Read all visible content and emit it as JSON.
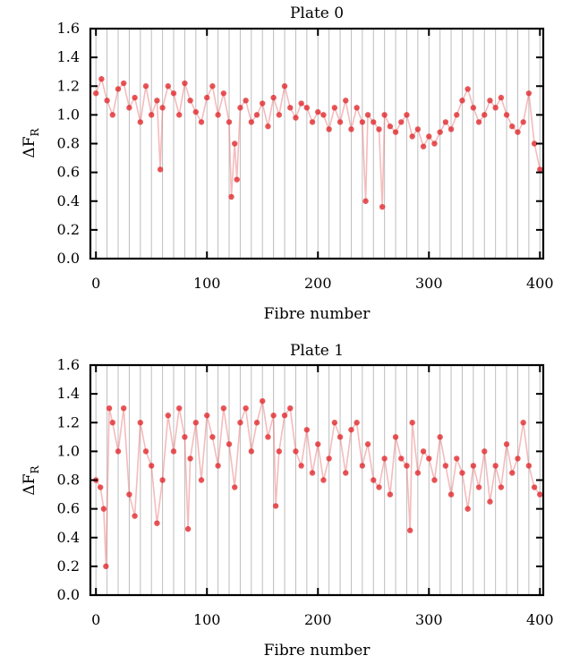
{
  "chart_data": [
    {
      "type": "scatter",
      "title": "Plate 0",
      "xlabel": "Fibre number",
      "ylabel": "ΔF",
      "ylabel_sub": "R",
      "xlim": [
        -5,
        403
      ],
      "ylim": [
        0.0,
        1.6
      ],
      "xticks": [
        "0",
        "100",
        "200",
        "300",
        "400"
      ],
      "yticks": [
        "0.0",
        "0.2",
        "0.4",
        "0.6",
        "0.8",
        "1.0",
        "1.2",
        "1.4",
        "1.6"
      ],
      "grid_x_every": 10,
      "colors": {
        "points": "#e0262a",
        "line": "#e8686b"
      },
      "series": [
        {
          "x": [
            0,
            5,
            10,
            15,
            20,
            25,
            30,
            35,
            40,
            45,
            50,
            55,
            58,
            60,
            65,
            70,
            75,
            80,
            85,
            90,
            95,
            100,
            105,
            110,
            115,
            120,
            122,
            125,
            127,
            130,
            135,
            140,
            145,
            150,
            155,
            160,
            165,
            170,
            175,
            180,
            185,
            190,
            195,
            200,
            205,
            210,
            215,
            220,
            225,
            230,
            235,
            240,
            243,
            245,
            250,
            255,
            258,
            260,
            265,
            270,
            275,
            280,
            285,
            290,
            295,
            300,
            305,
            310,
            315,
            320,
            325,
            330,
            335,
            340,
            345,
            350,
            355,
            360,
            365,
            370,
            375,
            380,
            385,
            390,
            395,
            400
          ],
          "y": [
            1.15,
            1.25,
            1.1,
            1.0,
            1.18,
            1.22,
            1.05,
            1.12,
            0.95,
            1.2,
            1.0,
            1.1,
            0.62,
            1.05,
            1.2,
            1.15,
            1.0,
            1.22,
            1.1,
            1.02,
            0.95,
            1.12,
            1.2,
            1.0,
            1.15,
            0.95,
            0.43,
            0.8,
            0.55,
            1.05,
            1.1,
            0.95,
            1.0,
            1.08,
            0.92,
            1.12,
            1.0,
            1.2,
            1.05,
            0.98,
            1.08,
            1.05,
            0.95,
            1.02,
            1.0,
            0.9,
            1.05,
            0.95,
            1.1,
            0.9,
            1.05,
            0.95,
            0.4,
            1.0,
            0.95,
            0.9,
            0.36,
            1.0,
            0.92,
            0.88,
            0.95,
            1.0,
            0.85,
            0.9,
            0.78,
            0.85,
            0.8,
            0.88,
            0.95,
            0.9,
            1.0,
            1.1,
            1.18,
            1.05,
            0.95,
            1.0,
            1.1,
            1.05,
            1.12,
            1.0,
            0.92,
            0.88,
            0.95,
            1.15,
            0.8,
            0.62
          ]
        }
      ]
    },
    {
      "type": "scatter",
      "title": "Plate 1",
      "xlabel": "Fibre number",
      "ylabel": "ΔF",
      "ylabel_sub": "R",
      "xlim": [
        -5,
        403
      ],
      "ylim": [
        0.0,
        1.6
      ],
      "xticks": [
        "0",
        "100",
        "200",
        "300",
        "400"
      ],
      "yticks": [
        "0.0",
        "0.2",
        "0.4",
        "0.6",
        "0.8",
        "1.0",
        "1.2",
        "1.4",
        "1.6"
      ],
      "grid_x_every": 10,
      "colors": {
        "points": "#e0262a",
        "line": "#e8686b"
      },
      "series": [
        {
          "x": [
            0,
            4,
            7,
            9,
            12,
            15,
            20,
            25,
            30,
            35,
            40,
            45,
            50,
            55,
            60,
            65,
            70,
            75,
            80,
            83,
            85,
            90,
            95,
            100,
            105,
            110,
            115,
            120,
            125,
            130,
            135,
            140,
            145,
            150,
            155,
            160,
            162,
            165,
            170,
            175,
            180,
            185,
            190,
            195,
            200,
            205,
            210,
            215,
            220,
            225,
            230,
            235,
            240,
            245,
            250,
            255,
            260,
            265,
            270,
            275,
            280,
            283,
            285,
            290,
            295,
            300,
            305,
            310,
            315,
            320,
            325,
            330,
            335,
            340,
            345,
            350,
            355,
            360,
            365,
            370,
            375,
            380,
            385,
            390,
            395,
            400
          ],
          "y": [
            0.8,
            0.75,
            0.6,
            0.2,
            1.3,
            1.2,
            1.0,
            1.3,
            0.7,
            0.55,
            1.2,
            1.0,
            0.9,
            0.5,
            0.8,
            1.25,
            1.0,
            1.3,
            1.1,
            0.46,
            0.95,
            1.2,
            0.8,
            1.25,
            1.1,
            0.9,
            1.3,
            1.05,
            0.75,
            1.2,
            1.3,
            1.0,
            1.2,
            1.35,
            1.1,
            1.25,
            0.62,
            1.0,
            1.25,
            1.3,
            1.0,
            0.9,
            1.15,
            0.85,
            1.05,
            0.8,
            0.95,
            1.2,
            1.1,
            0.85,
            1.15,
            1.2,
            0.9,
            1.05,
            0.8,
            0.75,
            0.95,
            0.7,
            1.1,
            0.95,
            0.9,
            0.45,
            1.2,
            0.85,
            1.0,
            0.95,
            0.8,
            1.1,
            0.9,
            0.7,
            0.95,
            0.85,
            0.6,
            0.9,
            0.75,
            1.0,
            0.65,
            0.9,
            0.75,
            1.05,
            0.85,
            0.95,
            1.2,
            0.9,
            0.75,
            0.7
          ]
        }
      ]
    }
  ]
}
